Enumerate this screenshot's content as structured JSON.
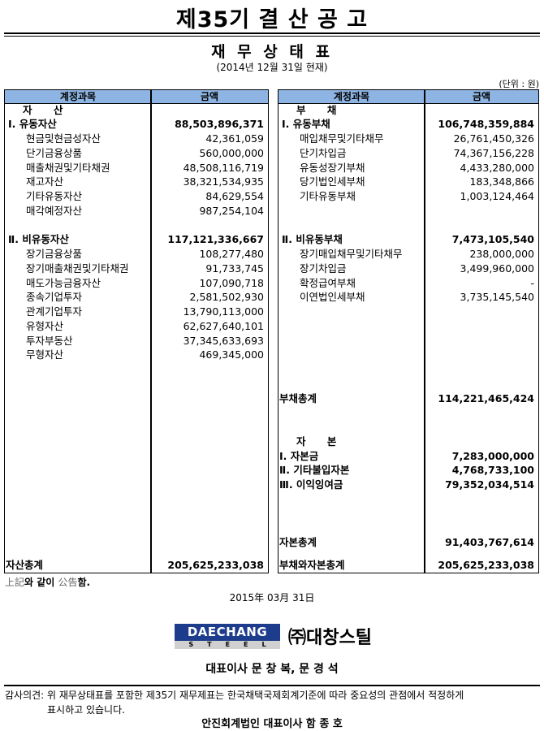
{
  "header": {
    "title": "제35기 결 산 공 고",
    "subtitle": "재 무 상 태 표",
    "as_of": "(2014년 12월 31일 현재)",
    "unit": "(단위 : 원)"
  },
  "table": {
    "col_account": "계정과목",
    "col_amount": "금액",
    "header_color": "#8db4e2",
    "left": [
      {
        "type": "group",
        "label": "자 산",
        "amount": ""
      },
      {
        "type": "section",
        "label": "Ⅰ. 유동자산",
        "amount": "88,503,896,371"
      },
      {
        "type": "item",
        "label": "현금및현금성자산",
        "amount": "42,361,059"
      },
      {
        "type": "item",
        "label": "단기금융상품",
        "amount": "560,000,000"
      },
      {
        "type": "item",
        "label": "매출채권및기타채권",
        "amount": "48,508,116,719"
      },
      {
        "type": "item",
        "label": "재고자산",
        "amount": "38,321,534,935"
      },
      {
        "type": "item",
        "label": "기타유동자산",
        "amount": "84,629,554"
      },
      {
        "type": "item",
        "label": "매각예정자산",
        "amount": "987,254,104"
      },
      {
        "type": "section",
        "label": "Ⅱ. 비유동자산",
        "amount": "117,121,336,667"
      },
      {
        "type": "item",
        "label": "장기금융상품",
        "amount": "108,277,480"
      },
      {
        "type": "item",
        "label": "장기매출채권및기타채권",
        "amount": "91,733,745"
      },
      {
        "type": "item",
        "label": "매도가능금융자산",
        "amount": "107,090,718"
      },
      {
        "type": "item",
        "label": "종속기업투자",
        "amount": "2,581,502,930"
      },
      {
        "type": "item",
        "label": "관계기업투자",
        "amount": "13,790,113,000"
      },
      {
        "type": "item",
        "label": "유형자산",
        "amount": "62,627,640,101"
      },
      {
        "type": "item",
        "label": "투자부동산",
        "amount": "37,345,633,693"
      },
      {
        "type": "item",
        "label": "무형자산",
        "amount": "469,345,000"
      }
    ],
    "right": [
      {
        "type": "group",
        "label": "부 채",
        "amount": ""
      },
      {
        "type": "section",
        "label": "Ⅰ. 유동부채",
        "amount": "106,748,359,884"
      },
      {
        "type": "item",
        "label": "매입채무및기타채무",
        "amount": "26,761,450,326"
      },
      {
        "type": "item",
        "label": "단기차입금",
        "amount": "74,367,156,228"
      },
      {
        "type": "item",
        "label": "유동성장기부채",
        "amount": "4,433,280,000"
      },
      {
        "type": "item",
        "label": "당기법인세부채",
        "amount": "183,348,866"
      },
      {
        "type": "item",
        "label": "기타유동부채",
        "amount": "1,003,124,464"
      },
      {
        "type": "section",
        "label": "Ⅱ. 비유동부채",
        "amount": "7,473,105,540"
      },
      {
        "type": "item",
        "label": "장기매입채무및기타채무",
        "amount": "238,000,000"
      },
      {
        "type": "item",
        "label": "장기차입금",
        "amount": "3,499,960,000"
      },
      {
        "type": "item",
        "label": "확정급여부채",
        "amount": "-"
      },
      {
        "type": "item",
        "label": "이연법인세부채",
        "amount": "3,735,145,540"
      },
      {
        "type": "total",
        "label": "부채총계",
        "amount": "114,221,465,424"
      },
      {
        "type": "group",
        "label": "자 본",
        "amount": ""
      },
      {
        "type": "total",
        "label": "Ⅰ. 자본금",
        "amount": "7,283,000,000"
      },
      {
        "type": "total",
        "label": "Ⅱ. 기타불입자본",
        "amount": "4,768,733,100"
      },
      {
        "type": "total",
        "label": "Ⅲ. 이익잉여금",
        "amount": "79,352,034,514"
      },
      {
        "type": "total",
        "label": "자본총계",
        "amount": "91,403,767,614"
      }
    ],
    "left_total": {
      "label": "자산총계",
      "amount": "205,625,233,038"
    },
    "right_total": {
      "label": "부채와자본총계",
      "amount": "205,625,233,038"
    }
  },
  "footer": {
    "notice_a": "上記",
    "notice_b": "와 같이 ",
    "notice_c": "公告",
    "notice_d": "함.",
    "date": "2015年 03月 31日",
    "logo_main": "DAECHANG",
    "logo_sub": "STEEL",
    "company": "㈜대창스틸",
    "ceo": "대표이사  문 창 복, 문 경 석",
    "audit_line1": "감사의견: 위 재무상태표를 포함한 제35기 재무제표는 한국채택국제회계기준에 따라 중요성의 관점에서 적정하게",
    "audit_line2": "표시하고 있습니다.",
    "auditor": "안진회계법인 대표이사 함 종 호"
  }
}
